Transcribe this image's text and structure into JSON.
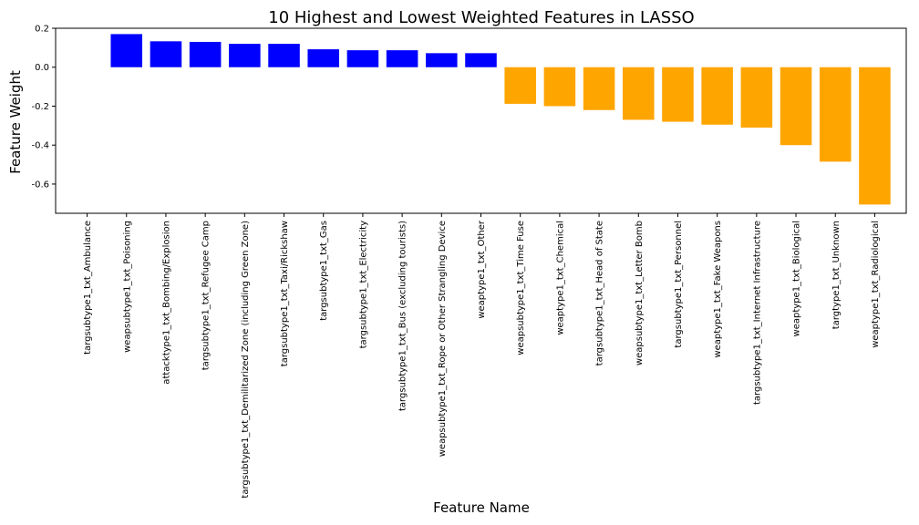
{
  "chart_data": {
    "type": "bar",
    "title": "10 Highest and Lowest Weighted Features in LASSO",
    "xlabel": "Feature Name",
    "ylabel": "Feature Weight",
    "ylim": [
      -0.75,
      0.2
    ],
    "yticks": [
      -0.6,
      -0.4,
      -0.2,
      0.0,
      0.2
    ],
    "ytick_labels": [
      "-0.6",
      "-0.4",
      "-0.2",
      "0.0",
      "0.2"
    ],
    "grid": false,
    "legend": "none",
    "colors": {
      "positive": "#0000ff",
      "negative": "#ffa500"
    },
    "categories": [
      "targsubtype1_txt_Ambulance",
      "weapsubtype1_txt_Poisoning",
      "attacktype1_txt_Bombing/Explosion",
      "targsubtype1_txt_Refugee Camp",
      "targsubtype1_txt_Demilitarized Zone (including Green Zone)",
      "targsubtype1_txt_Taxi/Rickshaw",
      "targsubtype1_txt_Gas",
      "targsubtype1_txt_Electricity",
      "targsubtype1_txt_Bus (excluding tourists)",
      "weapsubtype1_txt_Rope or Other Strangling Device",
      "weaptype1_txt_Other",
      "weapsubtype1_txt_Time Fuse",
      "weaptype1_txt_Chemical",
      "targsubtype1_txt_Head of State",
      "weapsubtype1_txt_Letter Bomb",
      "targsubtype1_txt_Personnel",
      "weaptype1_txt_Fake Weapons",
      "targsubtype1_txt_Internet Infrastructure",
      "weaptype1_txt_Biological",
      "targtype1_txt_Unknown",
      "weaptype1_txt_Radiological"
    ],
    "values": [
      0.0,
      0.17,
      0.133,
      0.13,
      0.12,
      0.12,
      0.092,
      0.087,
      0.087,
      0.072,
      0.072,
      -0.188,
      -0.2,
      -0.22,
      -0.27,
      -0.28,
      -0.295,
      -0.31,
      -0.4,
      -0.485,
      -0.705
    ]
  }
}
